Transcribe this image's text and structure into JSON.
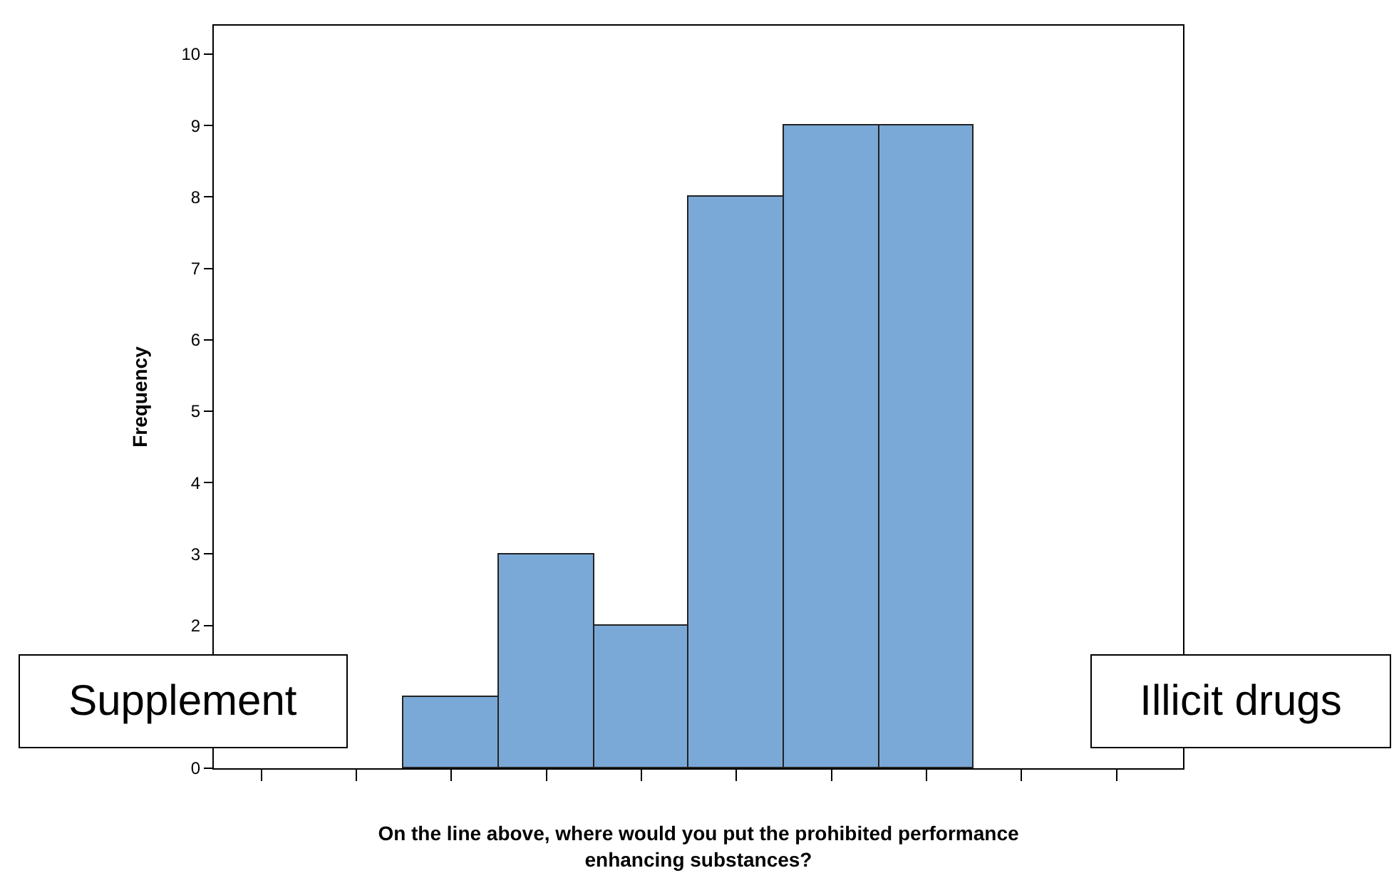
{
  "chart_data": {
    "type": "bar",
    "xlabel": "On the line above, where would you put the prohibited performance\nenhancing substances?",
    "ylabel": "Frequency",
    "categories": [
      null,
      null,
      null,
      null,
      null,
      null,
      null,
      null,
      null,
      null
    ],
    "values": [
      null,
      null,
      1,
      3,
      2,
      8,
      9,
      9,
      null,
      null
    ],
    "color": "#7aa9d7",
    "ylim": [
      0,
      10.4
    ],
    "yticks": [
      0,
      {
        "value": 1,
        "label": null
      },
      2,
      3,
      4,
      5,
      6,
      7,
      8,
      9,
      10
    ],
    "tick_labels": "y",
    "grid": false,
    "annotations": [
      {
        "text": "Supplement"
      },
      {
        "text": "Illicit drugs"
      }
    ]
  }
}
